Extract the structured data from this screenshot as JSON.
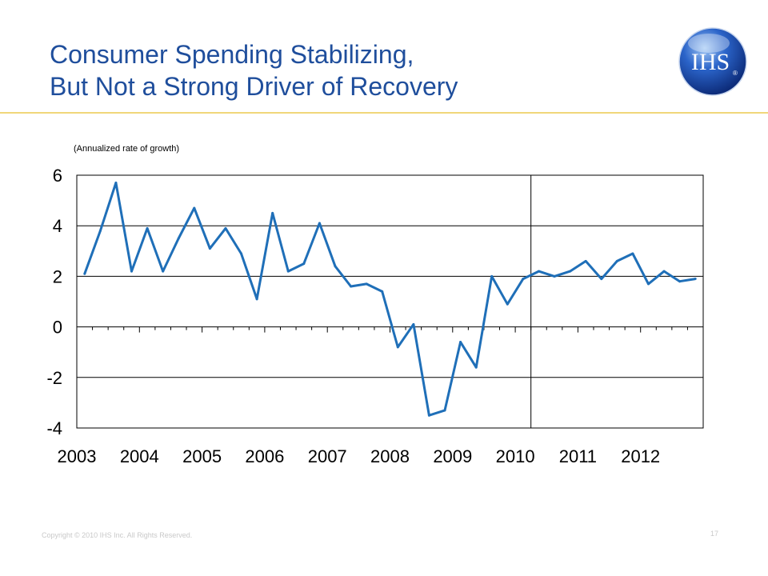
{
  "slide": {
    "title_line1": "Consumer Spending Stabilizing,",
    "title_line2": "But Not a Strong Driver of Recovery",
    "logo_text": "IHS",
    "logo_mark": "®",
    "footer": "Copyright © 2010 IHS Inc. All Rights Reserved.",
    "page_number": "17",
    "colors": {
      "title": "#1f4e9c",
      "rule": "#f0d77a",
      "series": "#1f6fb8"
    }
  },
  "chart_data": {
    "type": "line",
    "subtitle": "(Annualized rate of growth)",
    "xlabel": "",
    "ylabel": "",
    "ylim": [
      -4,
      6
    ],
    "yticks": [
      6,
      4,
      2,
      0,
      -2,
      -4
    ],
    "ytick_labels": [
      "6",
      "4",
      "2",
      "0",
      "-2",
      "-4"
    ],
    "xtick_labels": [
      "2003",
      "2004",
      "2005",
      "2006",
      "2007",
      "2008",
      "2009",
      "2010",
      "2011",
      "2012"
    ],
    "grid": "horizontal",
    "forecast_divider_before": "2010 Q2",
    "series": [
      {
        "name": "",
        "color": "#1f6fb8",
        "values": [
          2.1,
          3.8,
          5.7,
          2.2,
          3.9,
          2.2,
          3.5,
          4.7,
          3.1,
          3.9,
          2.9,
          1.1,
          4.5,
          2.2,
          2.5,
          4.1,
          2.4,
          1.6,
          1.7,
          1.4,
          -0.8,
          0.1,
          -3.5,
          -3.3,
          -0.6,
          -1.6,
          2.0,
          0.9,
          1.9,
          2.2,
          2.0,
          2.2,
          2.6,
          1.9,
          2.6,
          2.9,
          1.7,
          2.2,
          1.8,
          1.9
        ]
      }
    ]
  }
}
